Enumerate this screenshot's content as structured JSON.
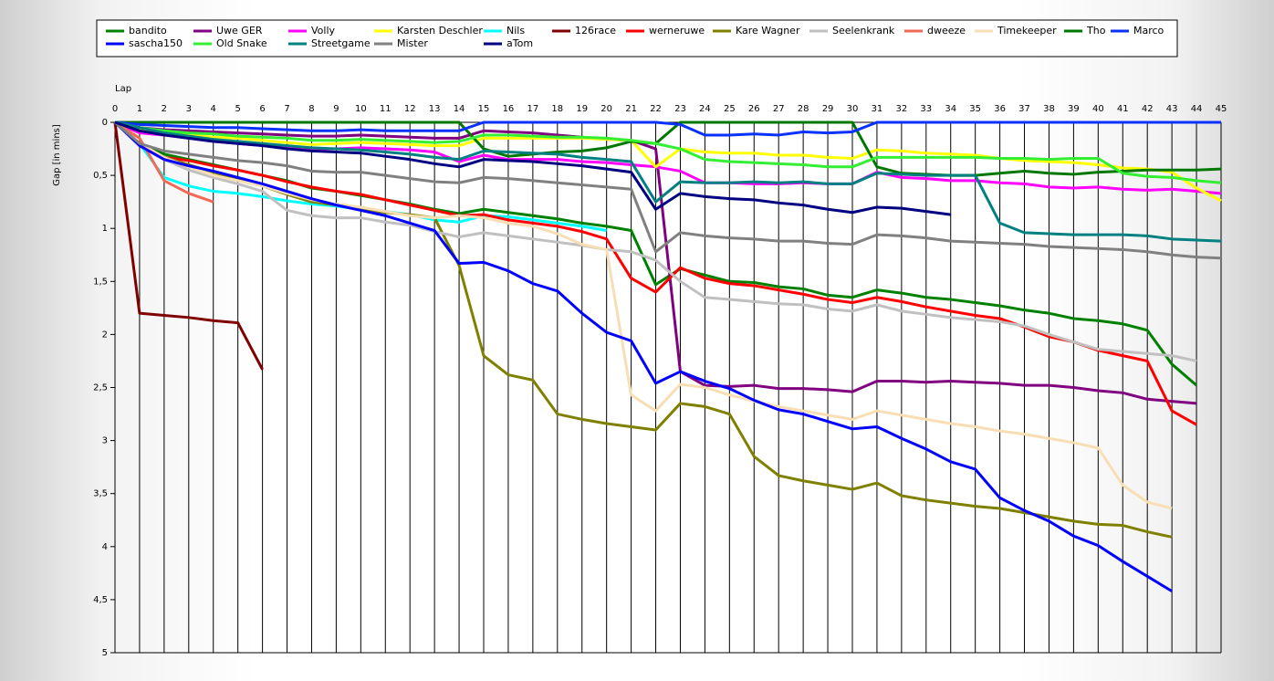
{
  "chart_data": {
    "type": "line",
    "xlabel": "Lap",
    "ylabel": "Gap [in mins]",
    "x": [
      0,
      1,
      2,
      3,
      4,
      5,
      6,
      7,
      8,
      9,
      10,
      11,
      12,
      13,
      14,
      15,
      16,
      17,
      18,
      19,
      20,
      21,
      22,
      23,
      24,
      25,
      26,
      27,
      28,
      29,
      30,
      31,
      32,
      33,
      34,
      35,
      36,
      37,
      38,
      39,
      40,
      41,
      42,
      43,
      44,
      45
    ],
    "xlim": [
      0,
      45
    ],
    "xticks": [
      0,
      1,
      2,
      3,
      4,
      5,
      6,
      7,
      8,
      9,
      10,
      11,
      12,
      13,
      14,
      15,
      16,
      17,
      18,
      19,
      20,
      21,
      22,
      23,
      24,
      25,
      26,
      27,
      28,
      29,
      30,
      31,
      32,
      33,
      34,
      35,
      36,
      37,
      38,
      39,
      40,
      41,
      42,
      43,
      44,
      45
    ],
    "ylim": [
      0,
      5
    ],
    "y_inverted": true,
    "yticks": [
      0,
      {
        "value": 0.5,
        "label": "0,5"
      },
      1,
      {
        "value": 1.5,
        "label": "1,5"
      },
      2,
      {
        "value": 2.5,
        "label": "2,5"
      },
      3,
      {
        "value": 3.5,
        "label": "3,5"
      },
      4,
      {
        "value": 4.5,
        "label": "4,5"
      },
      5
    ],
    "grid": true,
    "legend": "top",
    "series": [
      {
        "name": "bandito",
        "color": "#008000",
        "values": [
          0,
          0.2,
          0.3,
          0.35,
          0.4,
          0.45,
          0.5,
          0.55,
          0.62,
          0.65,
          0.69,
          0.73,
          0.77,
          0.82,
          0.86,
          0.82,
          0.85,
          0.88,
          0.91,
          0.95,
          0.98,
          1.02,
          1.53,
          1.38,
          1.44,
          1.5,
          1.51,
          1.55,
          1.57,
          1.63,
          1.65,
          1.58,
          1.61,
          1.65,
          1.67,
          1.7,
          1.73,
          1.77,
          1.8,
          1.85,
          1.87,
          1.9,
          1.96,
          2.28,
          2.48,
          null
        ]
      },
      {
        "name": "Uwe GER",
        "color": "#800080",
        "values": [
          0,
          0.05,
          0.07,
          0.08,
          0.09,
          0.1,
          0.11,
          0.12,
          0.13,
          0.13,
          0.12,
          0.13,
          0.14,
          0.15,
          0.15,
          0.08,
          0.09,
          0.1,
          0.12,
          0.14,
          0.16,
          0.17,
          0.25,
          2.35,
          2.48,
          2.49,
          2.48,
          2.51,
          2.51,
          2.52,
          2.54,
          2.44,
          2.44,
          2.45,
          2.44,
          2.45,
          2.46,
          2.48,
          2.48,
          2.5,
          2.53,
          2.55,
          2.61,
          2.63,
          2.65,
          null
        ]
      },
      {
        "name": "Volly",
        "color": "#ff00ff",
        "values": [
          0,
          0.1,
          0.12,
          0.15,
          0.18,
          0.2,
          0.22,
          0.24,
          0.25,
          0.25,
          0.24,
          0.25,
          0.26,
          0.28,
          0.37,
          0.31,
          0.35,
          0.35,
          0.35,
          0.37,
          0.38,
          0.4,
          0.42,
          0.46,
          0.57,
          0.57,
          0.58,
          0.58,
          0.57,
          0.58,
          0.58,
          0.47,
          0.52,
          0.53,
          0.55,
          0.55,
          0.57,
          0.58,
          0.61,
          0.62,
          0.61,
          0.63,
          0.64,
          0.63,
          0.65,
          0.67
        ]
      },
      {
        "name": "Karsten Deschler",
        "color": "#ffff00",
        "values": [
          0,
          0.07,
          0.1,
          0.12,
          0.14,
          0.15,
          0.17,
          0.19,
          0.21,
          0.2,
          0.19,
          0.2,
          0.21,
          0.22,
          0.22,
          0.15,
          0.15,
          0.15,
          0.15,
          0.15,
          0.16,
          0.17,
          0.42,
          0.25,
          0.28,
          0.29,
          0.29,
          0.31,
          0.31,
          0.33,
          0.34,
          0.26,
          0.27,
          0.29,
          0.3,
          0.31,
          0.34,
          0.36,
          0.37,
          0.38,
          0.4,
          0.43,
          0.44,
          0.47,
          0.62,
          0.74
        ]
      },
      {
        "name": "Nils",
        "color": "#00ffff",
        "values": [
          0,
          0.2,
          0.52,
          0.6,
          0.65,
          0.67,
          0.7,
          0.74,
          0.77,
          0.79,
          0.82,
          0.84,
          0.87,
          0.92,
          0.94,
          0.88,
          0.89,
          0.92,
          0.95,
          0.98,
          1.02,
          null,
          null,
          null,
          null,
          null,
          null,
          null,
          null,
          null,
          null,
          null,
          null,
          null,
          null,
          null,
          null,
          null,
          null,
          null,
          null,
          null,
          null,
          null,
          null,
          null
        ]
      },
      {
        "name": "126race",
        "color": "#800000",
        "values": [
          0,
          1.8,
          1.82,
          1.84,
          1.87,
          1.89,
          2.33,
          null,
          null,
          null,
          null,
          null,
          null,
          null,
          null,
          null,
          null,
          null,
          null,
          null,
          null,
          null,
          null,
          null,
          null,
          null,
          null,
          null,
          null,
          null,
          null,
          null,
          null,
          null,
          null,
          null,
          null,
          null,
          null,
          null,
          null,
          null,
          null,
          null,
          null,
          null
        ]
      },
      {
        "name": "werneruwe",
        "color": "#ff0000",
        "values": [
          0,
          0.2,
          0.33,
          0.36,
          0.41,
          0.45,
          0.5,
          0.56,
          0.61,
          0.65,
          0.68,
          0.73,
          0.78,
          0.83,
          0.88,
          0.87,
          0.92,
          0.95,
          0.98,
          1.03,
          1.1,
          1.47,
          1.6,
          1.37,
          1.47,
          1.52,
          1.54,
          1.58,
          1.62,
          1.67,
          1.7,
          1.65,
          1.69,
          1.74,
          1.78,
          1.82,
          1.85,
          1.93,
          2.02,
          2.07,
          2.15,
          2.2,
          2.25,
          2.72,
          2.85,
          null
        ]
      },
      {
        "name": "Kare Wagner",
        "color": "#808000",
        "values": [
          0,
          0.2,
          0.33,
          0.4,
          0.47,
          0.54,
          0.6,
          0.68,
          0.75,
          0.78,
          0.82,
          0.85,
          0.87,
          0.9,
          1.35,
          2.2,
          2.38,
          2.43,
          2.75,
          2.8,
          2.84,
          2.87,
          2.9,
          2.65,
          2.68,
          2.75,
          3.15,
          3.33,
          3.38,
          3.42,
          3.46,
          3.4,
          3.52,
          3.56,
          3.59,
          3.62,
          3.64,
          3.68,
          3.72,
          3.76,
          3.79,
          3.8,
          3.86,
          3.91,
          null,
          null
        ]
      },
      {
        "name": "Seelenkrank",
        "color": "#c0c0c0",
        "values": [
          0,
          0.2,
          0.35,
          0.45,
          0.52,
          0.58,
          0.65,
          0.83,
          0.88,
          0.9,
          0.9,
          0.94,
          0.97,
          1.03,
          1.08,
          1.04,
          1.07,
          1.1,
          1.13,
          1.16,
          1.2,
          1.22,
          1.3,
          1.5,
          1.65,
          1.67,
          1.69,
          1.71,
          1.72,
          1.76,
          1.78,
          1.72,
          1.78,
          1.81,
          1.84,
          1.86,
          1.88,
          1.92,
          2,
          2.07,
          2.14,
          2.16,
          2.18,
          2.2,
          2.25,
          null
        ]
      },
      {
        "name": "dweeze",
        "color": "#f26a55",
        "values": [
          0,
          0.15,
          0.55,
          0.67,
          0.75,
          null,
          null,
          null,
          null,
          null,
          null,
          null,
          null,
          null,
          null,
          null,
          null,
          null,
          null,
          null,
          null,
          null,
          null,
          null,
          null,
          null,
          null,
          null,
          null,
          null,
          null,
          null,
          null,
          null,
          null,
          null,
          null,
          null,
          null,
          null,
          null,
          null,
          null,
          null,
          null,
          null
        ]
      },
      {
        "name": "Timekeeper",
        "color": "#f8deb4",
        "values": [
          0,
          0.2,
          0.33,
          0.42,
          0.5,
          0.55,
          0.6,
          0.67,
          0.73,
          0.77,
          0.8,
          0.84,
          0.88,
          0.9,
          0.88,
          0.9,
          0.95,
          0.98,
          1.05,
          1.15,
          1.2,
          2.57,
          2.72,
          2.47,
          2.5,
          2.57,
          2.63,
          2.68,
          2.72,
          2.76,
          2.8,
          2.72,
          2.76,
          2.8,
          2.84,
          2.87,
          2.91,
          2.94,
          2.98,
          3.02,
          3.07,
          3.42,
          3.58,
          3.64,
          null,
          null
        ]
      },
      {
        "name": "Tho",
        "color": "#007800",
        "values": [
          0,
          0,
          0,
          0,
          0,
          0,
          0,
          0,
          0,
          0,
          0,
          0,
          0,
          0,
          0,
          0.25,
          0.32,
          0.3,
          0.28,
          0.27,
          0.24,
          0.18,
          0.2,
          0,
          0,
          0,
          0,
          0,
          0,
          0,
          0,
          0.42,
          0.48,
          0.49,
          0.5,
          0.5,
          0.48,
          0.46,
          0.48,
          0.49,
          0.47,
          0.46,
          0.45,
          0.45,
          0.45,
          0.44
        ]
      },
      {
        "name": "Marco",
        "color": "#0a32ff",
        "values": [
          0,
          0.02,
          0.03,
          0.04,
          0.05,
          0.05,
          0.06,
          0.07,
          0.08,
          0.08,
          0.07,
          0.08,
          0.08,
          0.08,
          0.08,
          0,
          0,
          0,
          0,
          0,
          0,
          0,
          0,
          0.02,
          0.12,
          0.12,
          0.11,
          0.12,
          0.09,
          0.1,
          0.09,
          0,
          0,
          0,
          0,
          0,
          0,
          0,
          0,
          0,
          0,
          0,
          0,
          0,
          0,
          0
        ]
      },
      {
        "name": "sascha150",
        "color": "#0000ff",
        "values": [
          0,
          0.22,
          0.35,
          0.41,
          0.46,
          0.52,
          0.58,
          0.65,
          0.72,
          0.78,
          0.83,
          0.88,
          0.95,
          1.02,
          1.33,
          1.32,
          1.4,
          1.52,
          1.59,
          1.8,
          1.98,
          2.06,
          2.46,
          2.35,
          2.44,
          2.51,
          2.62,
          2.71,
          2.75,
          2.82,
          2.89,
          2.87,
          2.98,
          3.08,
          3.2,
          3.27,
          3.54,
          3.66,
          3.76,
          3.9,
          3.99,
          4.14,
          4.28,
          4.42,
          null,
          null
        ]
      },
      {
        "name": "Old Snake",
        "color": "#33ee33",
        "values": [
          0,
          0.05,
          0.08,
          0.1,
          0.11,
          0.13,
          0.14,
          0.15,
          0.17,
          0.17,
          0.16,
          0.17,
          0.18,
          0.19,
          0.18,
          0.12,
          0.12,
          0.13,
          0.14,
          0.14,
          0.15,
          0.17,
          0.2,
          0.25,
          0.35,
          0.37,
          0.38,
          0.39,
          0.4,
          0.42,
          0.42,
          0.33,
          0.33,
          0.33,
          0.33,
          0.33,
          0.34,
          0.34,
          0.35,
          0.34,
          0.34,
          0.48,
          0.51,
          0.52,
          0.55,
          0.57
        ]
      },
      {
        "name": "Streetgame",
        "color": "#008080",
        "values": [
          0,
          0.05,
          0.1,
          0.13,
          0.16,
          0.18,
          0.2,
          0.22,
          0.24,
          0.25,
          0.26,
          0.28,
          0.3,
          0.33,
          0.35,
          0.27,
          0.28,
          0.29,
          0.3,
          0.33,
          0.35,
          0.37,
          0.75,
          0.56,
          0.57,
          0.57,
          0.56,
          0.57,
          0.56,
          0.58,
          0.58,
          0.48,
          0.49,
          0.5,
          0.5,
          0.5,
          0.95,
          1.04,
          1.05,
          1.06,
          1.06,
          1.06,
          1.07,
          1.1,
          1.11,
          1.12
        ]
      },
      {
        "name": "Mister",
        "color": "#808080",
        "values": [
          0,
          0.2,
          0.27,
          0.3,
          0.33,
          0.36,
          0.38,
          0.41,
          0.46,
          0.47,
          0.47,
          0.5,
          0.53,
          0.56,
          0.57,
          0.52,
          0.53,
          0.55,
          0.57,
          0.59,
          0.61,
          0.63,
          1.22,
          1.04,
          1.07,
          1.09,
          1.1,
          1.12,
          1.12,
          1.14,
          1.15,
          1.06,
          1.07,
          1.09,
          1.12,
          1.13,
          1.14,
          1.15,
          1.17,
          1.18,
          1.19,
          1.2,
          1.22,
          1.25,
          1.27,
          1.28
        ]
      },
      {
        "name": "aTom",
        "color": "#000080",
        "values": [
          0,
          0.08,
          0.12,
          0.15,
          0.18,
          0.2,
          0.22,
          0.25,
          0.27,
          0.28,
          0.29,
          0.32,
          0.35,
          0.39,
          0.42,
          0.35,
          0.36,
          0.37,
          0.39,
          0.41,
          0.44,
          0.47,
          0.82,
          0.67,
          0.7,
          0.72,
          0.73,
          0.76,
          0.78,
          0.82,
          0.85,
          0.8,
          0.81,
          0.84,
          0.87,
          null,
          null,
          null,
          null,
          null,
          null,
          null,
          null,
          null,
          null,
          null
        ]
      }
    ]
  }
}
